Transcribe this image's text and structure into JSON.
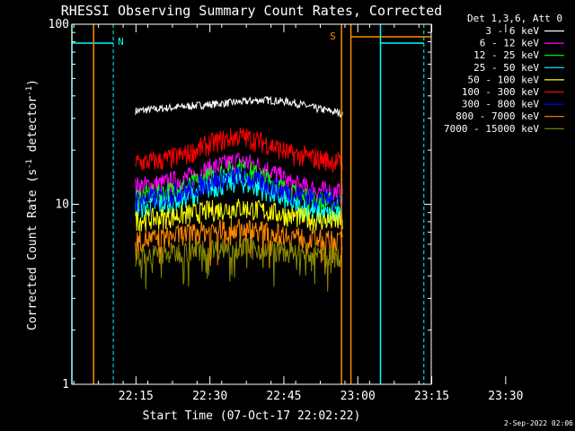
{
  "chart_data": {
    "type": "line",
    "title": "RHESSI Observing Summary Count Rates, Corrected",
    "xlabel": "Start Time (07-Oct-17 22:02:22)",
    "ylabel": "Corrected Count Rate (s",
    "ylabel_sup": "-1",
    "ylabel_mid": " detector",
    "ylabel_end": ")",
    "yscale": "log",
    "ylim": [
      1,
      100
    ],
    "xlim_minutes": [
      -2.4,
      70.5
    ],
    "y_tick_labels": [
      {
        "value": 1,
        "label": "1"
      },
      {
        "value": 10,
        "label": "10"
      },
      {
        "value": 100,
        "label": "100"
      }
    ],
    "x_tick_labels": [
      {
        "minute": 13,
        "label": "22:15"
      },
      {
        "minute": 28,
        "label": "22:30"
      },
      {
        "minute": 43,
        "label": "22:45"
      },
      {
        "minute": 58,
        "label": "23:00"
      },
      {
        "minute": 73,
        "label": "23:15"
      },
      {
        "minute": 88,
        "label": "23:30"
      }
    ],
    "legend": {
      "header": "Det 1,3,6, Att 0",
      "placement": "right"
    },
    "data_window_minutes": [
      10.5,
      52.5
    ],
    "series": [
      {
        "name": "3 - 6 keV",
        "color": "#ffffff",
        "profile": [
          33,
          34,
          35,
          36,
          37,
          38,
          37,
          34,
          32
        ]
      },
      {
        "name": "6 - 12 keV",
        "color": "#ff00ff",
        "profile": [
          12.5,
          13,
          14,
          16,
          17.5,
          16,
          13,
          12,
          11.5
        ]
      },
      {
        "name": "12 - 25 keV",
        "color": "#00ff00",
        "profile": [
          11,
          11.5,
          12.5,
          14.5,
          16,
          14,
          11.5,
          10.5,
          10
        ]
      },
      {
        "name": "25 - 50 keV",
        "color": "#00ffff",
        "profile": [
          9.5,
          10,
          11,
          12.5,
          13.5,
          12,
          10,
          9,
          8.5
        ]
      },
      {
        "name": "50 - 100 keV",
        "color": "#ffff00",
        "profile": [
          8.2,
          8.4,
          8.8,
          9.3,
          9.6,
          9.2,
          8.6,
          8.2,
          8
        ]
      },
      {
        "name": "100 - 300 keV",
        "color": "#ff0000",
        "profile": [
          17,
          17.5,
          19,
          22,
          24,
          22,
          19,
          18,
          17
        ]
      },
      {
        "name": "300 - 800 keV",
        "color": "#0000ff",
        "profile": [
          10.5,
          11,
          12,
          13.5,
          14.5,
          13,
          11.5,
          10.8,
          10.5
        ]
      },
      {
        "name": "800 - 7000 keV",
        "color": "#ff8800",
        "profile": [
          6.3,
          6.5,
          6.9,
          7.2,
          7.4,
          7.1,
          6.7,
          6.4,
          6.2
        ]
      },
      {
        "name": "7000 - 15000 keV",
        "color": "#888800",
        "profile": [
          5.2,
          5.3,
          5.5,
          5.7,
          5.8,
          5.6,
          5.4,
          5.2,
          5.1
        ]
      }
    ],
    "flags": [
      {
        "label": "N",
        "color": "#00ffff"
      },
      {
        "label": "S",
        "color": "#ff8800"
      }
    ]
  },
  "footer": {
    "timestamp": "2-Sep-2022 02:06"
  }
}
